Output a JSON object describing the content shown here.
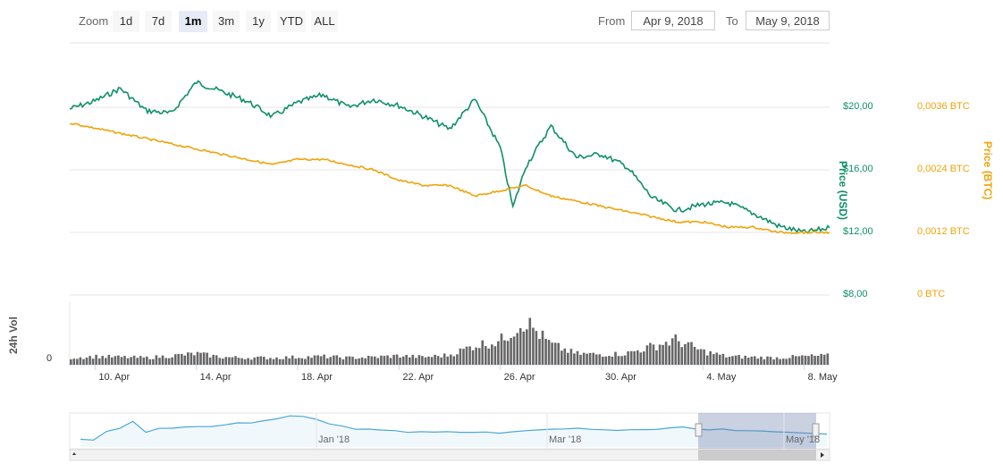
{
  "toolbar": {
    "zoom_label": "Zoom",
    "buttons": [
      "1d",
      "7d",
      "1m",
      "3m",
      "1y",
      "YTD",
      "ALL"
    ],
    "active": "1m",
    "from_label": "From",
    "from_value": "Apr 9, 2018",
    "to_label": "To",
    "to_value": "May 9, 2018"
  },
  "colors": {
    "usd": "#0e8f6a",
    "btc": "#f0a30a",
    "volume": "#666666",
    "navigator": "#4aa8d8"
  },
  "chart_data": {
    "type": "line",
    "x_labels": [
      "10. Apr",
      "14. Apr",
      "18. Apr",
      "22. Apr",
      "26. Apr",
      "30. Apr",
      "4. May",
      "8. May"
    ],
    "x_range": [
      "2018-04-09",
      "2018-05-09"
    ],
    "series": [
      {
        "name": "Price (USD)",
        "axis": "left",
        "color": "#0e8f6a",
        "points": [
          [
            "2018-04-09",
            19.9
          ],
          [
            "2018-04-10",
            20.4
          ],
          [
            "2018-04-11",
            21.2
          ],
          [
            "2018-04-12",
            19.8
          ],
          [
            "2018-04-13",
            19.6
          ],
          [
            "2018-04-14",
            21.6
          ],
          [
            "2018-04-15",
            21.0
          ],
          [
            "2018-04-16",
            20.4
          ],
          [
            "2018-04-17",
            19.4
          ],
          [
            "2018-04-18",
            20.3
          ],
          [
            "2018-04-19",
            20.8
          ],
          [
            "2018-04-20",
            20.0
          ],
          [
            "2018-04-21",
            20.5
          ],
          [
            "2018-04-22",
            20.1
          ],
          [
            "2018-04-23",
            19.4
          ],
          [
            "2018-04-24",
            18.6
          ],
          [
            "2018-04-25",
            20.5
          ],
          [
            "2018-04-26",
            17.4
          ],
          [
            "2018-04-26T12",
            13.6
          ],
          [
            "2018-04-27",
            16.2
          ],
          [
            "2018-04-28",
            18.8
          ],
          [
            "2018-04-29",
            16.8
          ],
          [
            "2018-04-30",
            17.0
          ],
          [
            "2018-05-01",
            16.2
          ],
          [
            "2018-05-02",
            14.2
          ],
          [
            "2018-05-03",
            13.4
          ],
          [
            "2018-05-04",
            13.8
          ],
          [
            "2018-05-05",
            13.9
          ],
          [
            "2018-05-06",
            13.2
          ],
          [
            "2018-05-07",
            12.4
          ],
          [
            "2018-05-08",
            12.0
          ],
          [
            "2018-05-09",
            12.3
          ]
        ]
      },
      {
        "name": "Price (BTC)",
        "axis": "right",
        "color": "#f0a30a",
        "points": [
          [
            "2018-04-09",
            0.0033
          ],
          [
            "2018-04-10",
            0.0032
          ],
          [
            "2018-04-11",
            0.0031
          ],
          [
            "2018-04-12",
            0.003
          ],
          [
            "2018-04-13",
            0.0029
          ],
          [
            "2018-04-14",
            0.0028
          ],
          [
            "2018-04-15",
            0.0027
          ],
          [
            "2018-04-16",
            0.0026
          ],
          [
            "2018-04-17",
            0.0025
          ],
          [
            "2018-04-18",
            0.0026
          ],
          [
            "2018-04-19",
            0.0026
          ],
          [
            "2018-04-20",
            0.0025
          ],
          [
            "2018-04-21",
            0.0024
          ],
          [
            "2018-04-22",
            0.0022
          ],
          [
            "2018-04-23",
            0.0021
          ],
          [
            "2018-04-24",
            0.0021
          ],
          [
            "2018-04-25",
            0.0019
          ],
          [
            "2018-04-26",
            0.002
          ],
          [
            "2018-04-27",
            0.0021
          ],
          [
            "2018-04-28",
            0.0019
          ],
          [
            "2018-04-29",
            0.0018
          ],
          [
            "2018-04-30",
            0.0017
          ],
          [
            "2018-05-01",
            0.0016
          ],
          [
            "2018-05-02",
            0.0015
          ],
          [
            "2018-05-03",
            0.0014
          ],
          [
            "2018-05-04",
            0.0014
          ],
          [
            "2018-05-05",
            0.0013
          ],
          [
            "2018-05-06",
            0.0013
          ],
          [
            "2018-05-07",
            0.0012
          ],
          [
            "2018-05-08",
            0.0012
          ],
          [
            "2018-05-09",
            0.0012
          ]
        ]
      }
    ],
    "y_left": {
      "title": "Price (USD)",
      "ticks": [
        "$20,00",
        "$16,00",
        "$12,00",
        "$8,00"
      ],
      "range": [
        8,
        24
      ]
    },
    "y_right": {
      "title": "Price (BTC)",
      "ticks": [
        "0,0036 BTC",
        "0,0024 BTC",
        "0,0012 BTC",
        "0 BTC"
      ],
      "range": [
        0,
        0.0048
      ]
    },
    "volume": {
      "title": "24h Vol",
      "zero_label": "0",
      "values": [
        1.0,
        1.2,
        1.1,
        1.0,
        1.3,
        1.6,
        1.1,
        1.0,
        1.0,
        1.1,
        1.2,
        1.0,
        1.1,
        1.3,
        1.1,
        1.4,
        2.8,
        3.4,
        6.4,
        3.0,
        1.6,
        1.5,
        1.6,
        2.6,
        3.6,
        2.0,
        1.2,
        1.1,
        1.0,
        1.2,
        1.3
      ]
    },
    "navigator": {
      "labels": [
        "Jan '18",
        "Mar '18",
        "May '18"
      ],
      "values": [
        0.2,
        0.2,
        0.5,
        0.6,
        0.9,
        0.5,
        0.6,
        0.62,
        0.65,
        0.7,
        0.72,
        0.75,
        0.8,
        0.85,
        0.9,
        1.0,
        1.1,
        1.05,
        0.95,
        0.8,
        0.7,
        0.62,
        0.58,
        0.55,
        0.52,
        0.5,
        0.5,
        0.48,
        0.47,
        0.46,
        0.45,
        0.46,
        0.48,
        0.5,
        0.53,
        0.55,
        0.58,
        0.6,
        0.62,
        0.6,
        0.58,
        0.56,
        0.55,
        0.57,
        0.6,
        0.62,
        0.65,
        0.63,
        0.6,
        0.58,
        0.55,
        0.52,
        0.5,
        0.48,
        0.46,
        0.44,
        0.42,
        0.4
      ]
    }
  }
}
